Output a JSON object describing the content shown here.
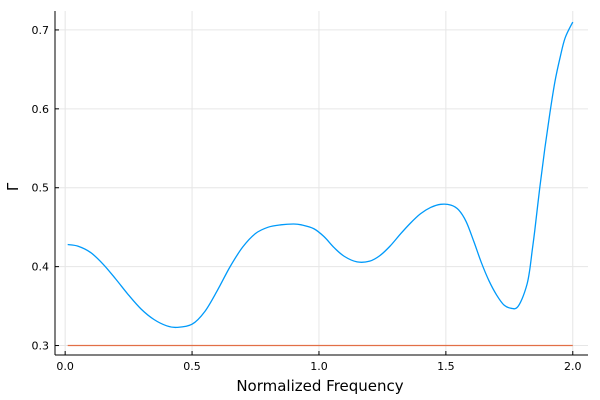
{
  "chart_data": {
    "type": "line",
    "title": "",
    "xlabel": "Normalized Frequency",
    "ylabel": "Γ",
    "xlim": [
      -0.04,
      2.06
    ],
    "ylim": [
      0.288,
      0.724
    ],
    "xticks": [
      0.0,
      0.5,
      1.0,
      1.5,
      2.0
    ],
    "xtick_labels": [
      "0.0",
      "0.5",
      "1.0",
      "1.5",
      "2.0"
    ],
    "yticks": [
      0.3,
      0.4,
      0.5,
      0.6,
      0.7
    ],
    "ytick_labels": [
      "0.3",
      "0.4",
      "0.5",
      "0.6",
      "0.7"
    ],
    "grid": true,
    "legend": "none",
    "series": [
      {
        "color": "#009AFA",
        "x": [
          0.01,
          0.05,
          0.1,
          0.15,
          0.2,
          0.25,
          0.3,
          0.35,
          0.4,
          0.44,
          0.5,
          0.55,
          0.6,
          0.65,
          0.7,
          0.75,
          0.8,
          0.85,
          0.9,
          0.93,
          0.98,
          1.02,
          1.06,
          1.1,
          1.15,
          1.2,
          1.24,
          1.28,
          1.32,
          1.36,
          1.4,
          1.44,
          1.48,
          1.52,
          1.55,
          1.58,
          1.61,
          1.64,
          1.67,
          1.7,
          1.73,
          1.76,
          1.78,
          1.8,
          1.82,
          1.83,
          1.84,
          1.85,
          1.87,
          1.89,
          1.91,
          1.93,
          1.95,
          1.97,
          2.0
        ],
        "y": [
          0.428,
          0.426,
          0.418,
          0.403,
          0.384,
          0.364,
          0.346,
          0.333,
          0.325,
          0.323,
          0.327,
          0.343,
          0.37,
          0.4,
          0.425,
          0.442,
          0.45,
          0.453,
          0.454,
          0.453,
          0.448,
          0.438,
          0.424,
          0.413,
          0.406,
          0.407,
          0.414,
          0.426,
          0.441,
          0.455,
          0.467,
          0.475,
          0.479,
          0.478,
          0.472,
          0.457,
          0.432,
          0.405,
          0.382,
          0.364,
          0.351,
          0.347,
          0.348,
          0.359,
          0.378,
          0.395,
          0.42,
          0.445,
          0.5,
          0.55,
          0.595,
          0.635,
          0.665,
          0.69,
          0.71
        ]
      },
      {
        "color": "#E26F46",
        "x": [
          0.01,
          2.0
        ],
        "y": [
          0.3,
          0.3
        ]
      }
    ]
  }
}
